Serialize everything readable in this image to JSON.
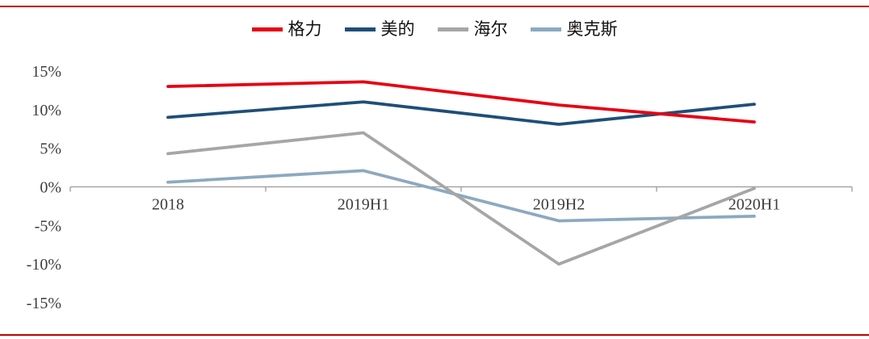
{
  "page": {
    "border_color": "#c00000",
    "background": "#ffffff"
  },
  "chart_data": {
    "type": "line",
    "title": "",
    "xlabel": "",
    "ylabel": "",
    "categories": [
      "2018",
      "2019H1",
      "2019H2",
      "2020H1"
    ],
    "series": [
      {
        "name": "格力",
        "color": "#e60012",
        "values": [
          13.0,
          13.6,
          10.6,
          8.4
        ]
      },
      {
        "name": "美的",
        "color": "#1f4e79",
        "values": [
          9.0,
          11.0,
          8.1,
          10.7
        ]
      },
      {
        "name": "海尔",
        "color": "#a6a6a6",
        "values": [
          4.3,
          7.0,
          -10.0,
          -0.2
        ]
      },
      {
        "name": "奥克斯",
        "color": "#8ca9c0",
        "values": [
          0.6,
          2.1,
          -4.4,
          -3.8
        ]
      }
    ],
    "ylim": [
      -15,
      15
    ],
    "yticks": [
      {
        "value": 15,
        "label": "15%"
      },
      {
        "value": 10,
        "label": "10%"
      },
      {
        "value": 5,
        "label": "5%"
      },
      {
        "value": 0,
        "label": "0%"
      },
      {
        "value": -5,
        "label": "-5%"
      },
      {
        "value": -10,
        "label": "-10%"
      },
      {
        "value": -15,
        "label": "-15%"
      }
    ],
    "grid": false,
    "legend_position": "top"
  }
}
